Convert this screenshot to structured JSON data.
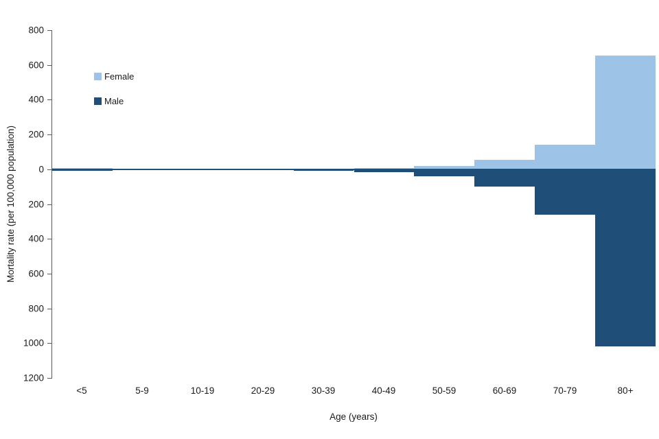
{
  "chart_data": {
    "type": "bar",
    "variant": "diverging-vertical",
    "title": "",
    "xlabel": "Age (years)",
    "ylabel": "Mortality rate (per 100,000 population)",
    "grid": false,
    "legend_position": "top-left-inside",
    "categories": [
      "<5",
      "5-9",
      "10-19",
      "20-29",
      "30-39",
      "40-49",
      "50-59",
      "60-69",
      "70-79",
      "80+"
    ],
    "series": [
      {
        "name": "Female",
        "direction": "up",
        "color": "#9DC3E6",
        "values": [
          6,
          2,
          2,
          2,
          3,
          8,
          20,
          55,
          140,
          655
        ]
      },
      {
        "name": "Male",
        "direction": "down",
        "color": "#1F4E79",
        "values": [
          10,
          2,
          3,
          4,
          8,
          15,
          40,
          100,
          260,
          1020
        ]
      }
    ],
    "ylim_top": 800,
    "ylim_bottom": -1200,
    "y_axis_ticks": [
      {
        "value": 800,
        "label": "800"
      },
      {
        "value": 600,
        "label": "600"
      },
      {
        "value": 400,
        "label": "400"
      },
      {
        "value": 200,
        "label": "200"
      },
      {
        "value": 0,
        "label": "0"
      },
      {
        "value": -200,
        "label": "200"
      },
      {
        "value": -400,
        "label": "400"
      },
      {
        "value": -600,
        "label": "600"
      },
      {
        "value": -800,
        "label": "800"
      },
      {
        "value": -1000,
        "label": "1000"
      },
      {
        "value": -1200,
        "label": "1200"
      }
    ],
    "axis_color": "#595959",
    "zero_line_color": "#1F4E79"
  }
}
